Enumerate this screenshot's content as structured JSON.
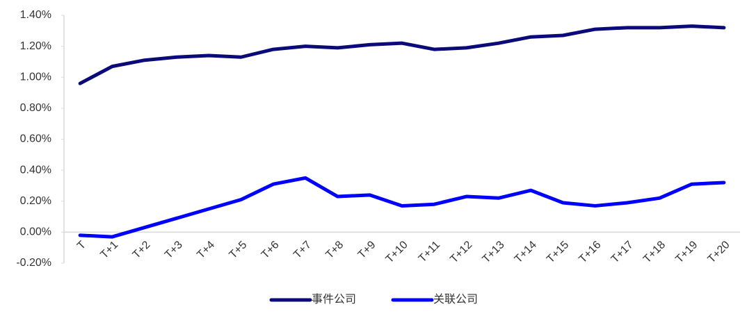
{
  "chart_data": {
    "type": "line",
    "categories": [
      "T",
      "T+1",
      "T+2",
      "T+3",
      "T+4",
      "T+5",
      "T+6",
      "T+7",
      "T+8",
      "T+9",
      "T+10",
      "T+11",
      "T+12",
      "T+13",
      "T+14",
      "T+15",
      "T+16",
      "T+17",
      "T+18",
      "T+19",
      "T+20"
    ],
    "series": [
      {
        "name": "事件公司",
        "color": "#0a0a78",
        "values": [
          0.96,
          1.07,
          1.11,
          1.13,
          1.14,
          1.13,
          1.18,
          1.2,
          1.19,
          1.21,
          1.22,
          1.18,
          1.19,
          1.22,
          1.26,
          1.27,
          1.31,
          1.32,
          1.32,
          1.33,
          1.32
        ]
      },
      {
        "name": "关联公司",
        "color": "#0000ff",
        "values": [
          -0.02,
          -0.03,
          0.03,
          0.09,
          0.15,
          0.21,
          0.31,
          0.35,
          0.23,
          0.24,
          0.17,
          0.18,
          0.23,
          0.22,
          0.27,
          0.19,
          0.17,
          0.19,
          0.22,
          0.31,
          0.32
        ]
      }
    ],
    "ylim": [
      -0.2,
      1.4
    ],
    "yticks": [
      {
        "value": -0.2,
        "label": "-0.20%"
      },
      {
        "value": 0,
        "label": "0.00%"
      },
      {
        "value": 0.2,
        "label": "0.20%"
      },
      {
        "value": 0.4,
        "label": "0.40%"
      },
      {
        "value": 0.6,
        "label": "0.60%"
      },
      {
        "value": 0.8,
        "label": "0.80%"
      },
      {
        "value": 1.0,
        "label": "1.00%"
      },
      {
        "value": 1.2,
        "label": "1.20%"
      },
      {
        "value": 1.4,
        "label": "1.40%"
      }
    ],
    "grid": false,
    "legend": "bottom"
  }
}
